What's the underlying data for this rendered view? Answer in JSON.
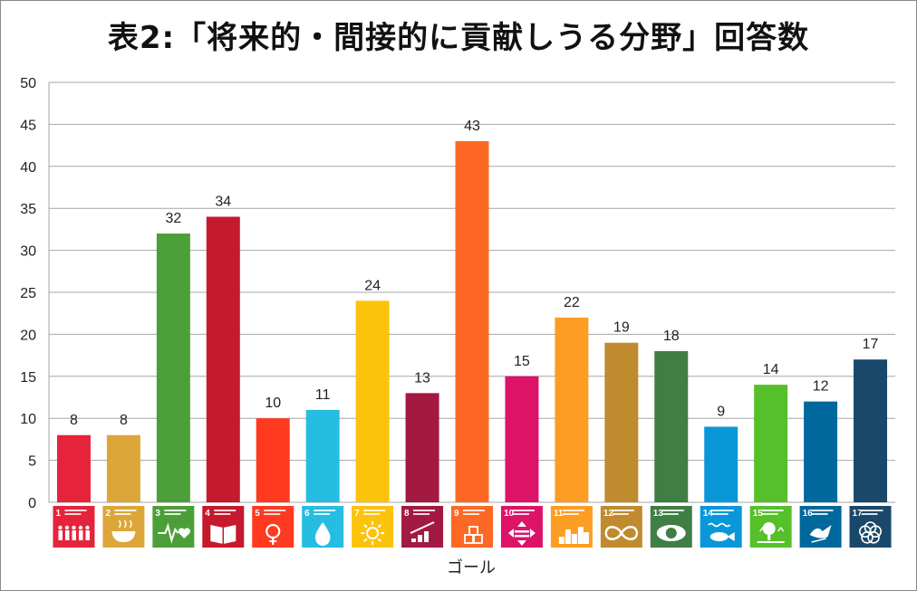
{
  "chart_data": {
    "type": "bar",
    "title": "表2:「将来的・間接的に貢献しうる分野」回答数",
    "xlabel": "ゴール",
    "ylabel": "",
    "ylim": [
      0,
      50
    ],
    "yticks": [
      0,
      5,
      10,
      15,
      20,
      25,
      30,
      35,
      40,
      45,
      50
    ],
    "grid": true,
    "categories": [
      "1",
      "2",
      "3",
      "4",
      "5",
      "6",
      "7",
      "8",
      "9",
      "10",
      "11",
      "12",
      "13",
      "14",
      "15",
      "16",
      "17"
    ],
    "values": [
      8,
      8,
      32,
      34,
      10,
      11,
      24,
      13,
      43,
      15,
      22,
      19,
      18,
      9,
      14,
      12,
      17
    ],
    "colors": [
      "#E5243B",
      "#DDA63A",
      "#4C9F38",
      "#C5192D",
      "#FF3A21",
      "#26BDE2",
      "#FCC30B",
      "#A21942",
      "#FD6925",
      "#DD1367",
      "#FD9D24",
      "#BF8B2E",
      "#3F7E44",
      "#0A97D9",
      "#56C02B",
      "#00689D",
      "#19486A"
    ],
    "icons": [
      "people-icon",
      "bowl-icon",
      "heartbeat-icon",
      "book-icon",
      "gender-icon",
      "water-drop-icon",
      "sun-icon",
      "growth-chart-icon",
      "cubes-icon",
      "equality-arrows-icon",
      "city-icon",
      "infinity-icon",
      "eye-globe-icon",
      "fish-icon",
      "tree-icon",
      "dove-icon",
      "flower-icon"
    ]
  }
}
